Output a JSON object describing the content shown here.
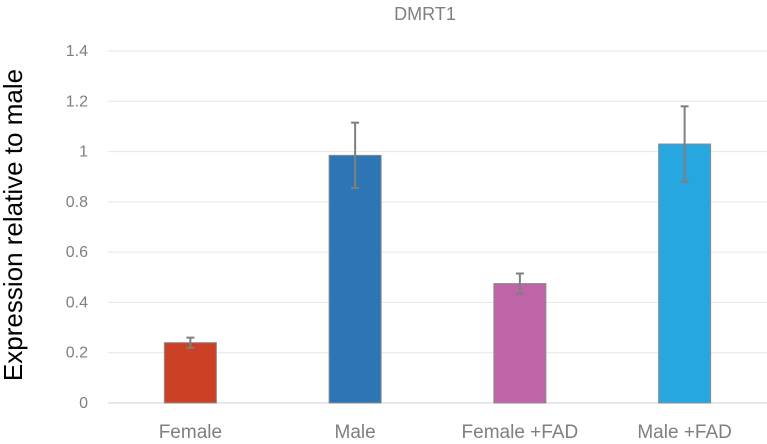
{
  "chart_data": {
    "type": "bar",
    "title": "DMRT1",
    "xlabel": "",
    "ylabel": "Expression relative to male",
    "ylim": [
      0,
      1.4
    ],
    "ytick_values": [
      0,
      0.2,
      0.4,
      0.6,
      0.8,
      1,
      1.2,
      1.4
    ],
    "ytick_labels": [
      "0",
      "0.2",
      "0.4",
      "0.6",
      "0.8",
      "1",
      "1.2",
      "1.4"
    ],
    "grid": true,
    "legend": "none",
    "categories": [
      "Female",
      "Male",
      "Female +FAD",
      "Male +FAD"
    ],
    "values": [
      0.24,
      0.985,
      0.475,
      1.03
    ],
    "error": [
      0.02,
      0.13,
      0.04,
      0.15
    ],
    "colors": [
      "#cc4125",
      "#2e75b6",
      "#c064a8",
      "#27a7df"
    ]
  }
}
